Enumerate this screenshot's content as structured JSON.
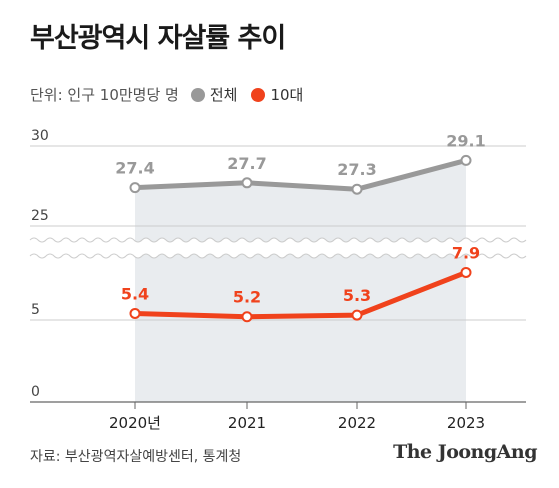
{
  "title": "부산광역시 자살률 추이",
  "unit_label": "단위: 인구 10만명당 명",
  "source": "자료: 부산광역자살예방센터, 통계청",
  "brand": "The JoongAng",
  "colors": {
    "total": "#999999",
    "teens": "#f0421c",
    "area": "#e9ecef",
    "grid": "#cccccc"
  },
  "chart_data": {
    "type": "line",
    "title": "부산광역시 자살률 추이",
    "categories": [
      "2020년",
      "2021",
      "2022",
      "2023"
    ],
    "y_ticks": [
      "30",
      "25",
      "5",
      "0"
    ],
    "axis_break": true,
    "legend_position": "top-left",
    "grid": true,
    "series": [
      {
        "name": "전체",
        "values": [
          27.4,
          27.7,
          27.3,
          29.1
        ],
        "labels": [
          "27.4",
          "27.7",
          "27.3",
          "29.1"
        ],
        "color": "#999999"
      },
      {
        "name": "10대",
        "values": [
          5.4,
          5.2,
          5.3,
          7.9
        ],
        "labels": [
          "5.4",
          "5.2",
          "5.3",
          "7.9"
        ],
        "color": "#f0421c"
      }
    ]
  }
}
